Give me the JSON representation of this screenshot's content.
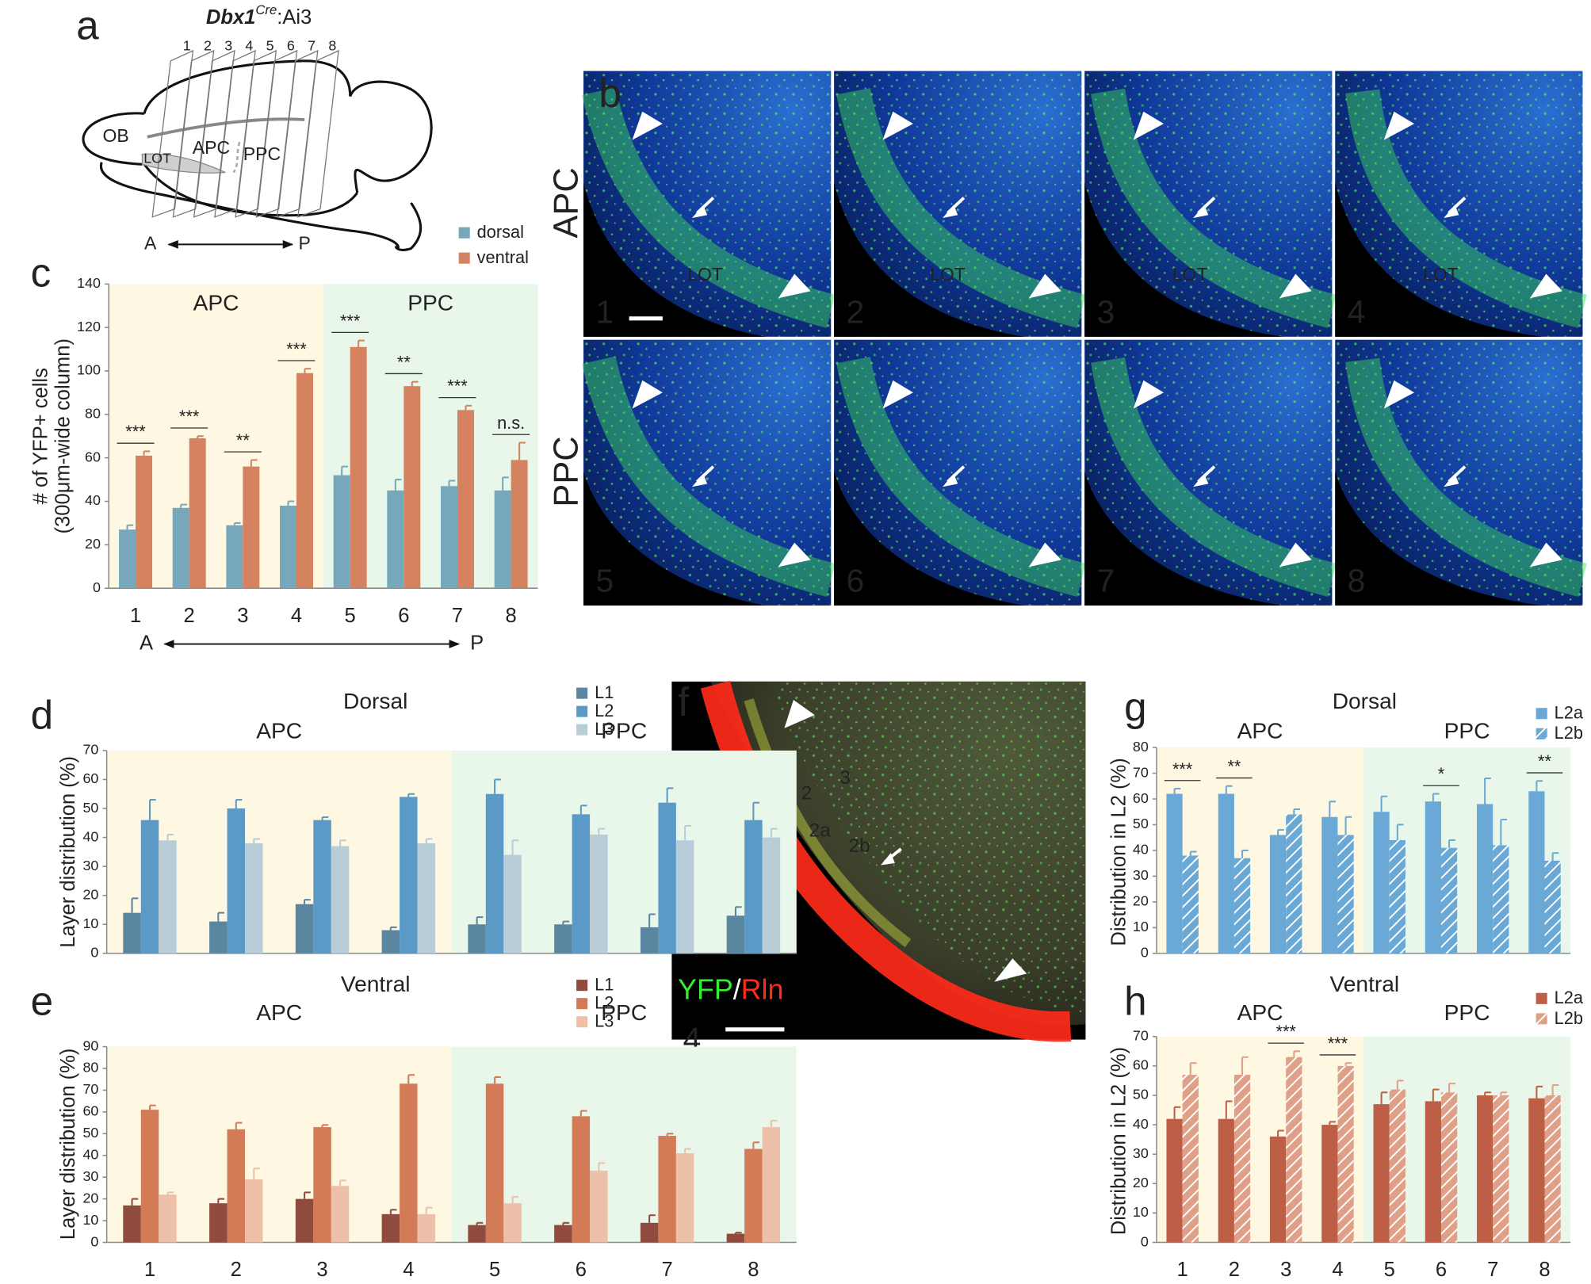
{
  "diagram": {
    "panel_label": "a",
    "title_gene": "Dbx1",
    "title_sup": "Cre",
    "title_rest": ":Ai3",
    "sections": [
      "1",
      "2",
      "3",
      "4",
      "5",
      "6",
      "7",
      "8"
    ],
    "structures": [
      "OB",
      "LOT",
      "APC",
      "PPC"
    ],
    "axis_ends": [
      "A",
      "P"
    ]
  },
  "micrographs": {
    "panel_label": "b",
    "row_labels": [
      "APC",
      "PPC"
    ],
    "sections": [
      "1",
      "2",
      "3",
      "4",
      "5",
      "6",
      "7",
      "8"
    ],
    "tract_labels": [
      "LOT",
      "LOT",
      "LOT",
      "LOT"
    ]
  },
  "image_f": {
    "panel_label": "f",
    "layers": [
      "1",
      "2",
      "3",
      "2a",
      "2b"
    ],
    "stain_green": "YFP",
    "stain_sep": "/",
    "stain_red": "Rln",
    "section": "4"
  },
  "chart_data": [
    {
      "type": "bar",
      "panel_label": "c",
      "ylabel": [
        "# of YFP+ cells",
        "(300μm-wide column)"
      ],
      "categories": [
        "1",
        "2",
        "3",
        "4",
        "5",
        "6",
        "7",
        "8"
      ],
      "x_ends": [
        "A",
        "P"
      ],
      "regions": [
        {
          "label": "APC",
          "start": 0,
          "end": 3,
          "color": "#fef7e2"
        },
        {
          "label": "PPC",
          "start": 4,
          "end": 7,
          "color": "#e8f7e9"
        }
      ],
      "series": [
        {
          "name": "dorsal",
          "color": "#76a7bb",
          "values": [
            27,
            37,
            29,
            38,
            52,
            45,
            47,
            45
          ],
          "errors": [
            2,
            1.5,
            1,
            2,
            4,
            5,
            2.5,
            6
          ]
        },
        {
          "name": "ventral",
          "color": "#d4825f",
          "values": [
            61,
            69,
            56,
            99,
            111,
            93,
            82,
            59
          ],
          "errors": [
            2,
            1,
            3,
            2,
            3,
            2,
            2,
            8
          ]
        }
      ],
      "significance": [
        "***",
        "***",
        "**",
        "***",
        "***",
        "**",
        "***",
        "n.s."
      ],
      "ylim": [
        0,
        140
      ],
      "yticks": [
        0,
        20,
        40,
        60,
        80,
        100,
        120,
        140
      ]
    },
    {
      "type": "bar",
      "panel_label": "d",
      "title": "Dorsal",
      "ylabel": "Layer distribution (%)",
      "categories": [
        null,
        null,
        null,
        null,
        null,
        null,
        null,
        null
      ],
      "regions": [
        {
          "label": "APC",
          "start": 0,
          "end": 3,
          "color": "#fef7e2"
        },
        {
          "label": "PPC",
          "start": 4,
          "end": 7,
          "color": "#e8f7e9"
        }
      ],
      "series": [
        {
          "name": "L1",
          "color": "#5a86a0",
          "values": [
            14,
            11,
            17,
            8,
            10,
            10,
            9,
            13
          ],
          "errors": [
            5,
            3,
            1.5,
            1,
            2.5,
            1,
            4.5,
            3
          ]
        },
        {
          "name": "L2",
          "color": "#5b9ac6",
          "values": [
            46,
            50,
            46,
            54,
            55,
            48,
            52,
            46
          ],
          "errors": [
            7,
            3,
            1,
            1,
            5,
            3,
            5,
            6
          ]
        },
        {
          "name": "L3",
          "color": "#b9cdd8",
          "values": [
            39,
            38,
            37,
            38,
            34,
            41,
            39,
            40
          ],
          "errors": [
            2,
            1.5,
            2,
            1.5,
            5,
            2,
            5,
            3
          ]
        }
      ],
      "ylim": [
        0,
        70
      ],
      "yticks": [
        0,
        10,
        20,
        30,
        40,
        50,
        60,
        70
      ]
    },
    {
      "type": "bar",
      "panel_label": "e",
      "title": "Ventral",
      "ylabel": "Layer distribution (%)",
      "categories": [
        "1",
        "2",
        "3",
        "4",
        "5",
        "6",
        "7",
        "8"
      ],
      "regions": [
        {
          "label": "APC",
          "start": 0,
          "end": 3,
          "color": "#fef7e2"
        },
        {
          "label": "PPC",
          "start": 4,
          "end": 7,
          "color": "#e8f7e9"
        }
      ],
      "series": [
        {
          "name": "L1",
          "color": "#8f4b3d",
          "values": [
            17,
            18,
            20,
            13,
            8,
            8,
            9,
            4
          ],
          "errors": [
            3,
            2,
            3,
            2,
            1,
            1,
            3.5,
            0.5
          ]
        },
        {
          "name": "L2",
          "color": "#d37b57",
          "values": [
            61,
            52,
            53,
            73,
            73,
            58,
            49,
            43
          ],
          "errors": [
            2,
            3,
            1,
            4,
            3,
            2.5,
            1,
            3
          ]
        },
        {
          "name": "L3",
          "color": "#ecc0a9",
          "values": [
            22,
            29,
            26,
            13,
            18,
            33,
            41,
            53
          ],
          "errors": [
            1,
            5,
            2.5,
            3,
            3,
            3.5,
            2,
            3
          ]
        }
      ],
      "ylim": [
        0,
        90
      ],
      "yticks": [
        0,
        10,
        20,
        30,
        40,
        50,
        60,
        70,
        80,
        90
      ]
    },
    {
      "type": "bar",
      "panel_label": "g",
      "title": "Dorsal",
      "ylabel": "Distribution in L2 (%)",
      "categories": [
        null,
        null,
        null,
        null,
        null,
        null,
        null,
        null
      ],
      "regions": [
        {
          "label": "APC",
          "start": 0,
          "end": 3,
          "color": "#fef7e2"
        },
        {
          "label": "PPC",
          "start": 4,
          "end": 7,
          "color": "#e8f7e9"
        }
      ],
      "series": [
        {
          "name": "L2a",
          "color": "#6aa8d6",
          "values": [
            62,
            62,
            46,
            53,
            55,
            59,
            58,
            63
          ],
          "errors": [
            2,
            3,
            2,
            6,
            6,
            3,
            10,
            4
          ]
        },
        {
          "name": "L2b",
          "color": "#6aa8d6",
          "hatch": true,
          "values": [
            38,
            37,
            54,
            46,
            44,
            41,
            42,
            36
          ],
          "errors": [
            1.5,
            3,
            2,
            7,
            6,
            3,
            10,
            3
          ]
        }
      ],
      "significance": [
        "***",
        "**",
        null,
        null,
        null,
        "*",
        null,
        "**"
      ],
      "ylim": [
        0,
        80
      ],
      "yticks": [
        0,
        10,
        20,
        30,
        40,
        50,
        60,
        70,
        80
      ]
    },
    {
      "type": "bar",
      "panel_label": "h",
      "title": "Ventral",
      "ylabel": "Distribution in L2 (%)",
      "categories": [
        "1",
        "2",
        "3",
        "4",
        "5",
        "6",
        "7",
        "8"
      ],
      "regions": [
        {
          "label": "APC",
          "start": 0,
          "end": 3,
          "color": "#fef7e2"
        },
        {
          "label": "PPC",
          "start": 4,
          "end": 7,
          "color": "#e8f7e9"
        }
      ],
      "series": [
        {
          "name": "L2a",
          "color": "#bd5f47",
          "values": [
            42,
            42,
            36,
            40,
            47,
            48,
            50,
            49
          ],
          "errors": [
            4,
            6,
            2,
            1,
            4,
            4,
            1,
            4
          ]
        },
        {
          "name": "L2b",
          "color": "#e0a088",
          "hatch": true,
          "values": [
            57,
            57,
            63,
            60,
            52,
            51,
            50,
            50
          ],
          "errors": [
            4,
            6,
            2,
            1,
            3,
            3,
            1,
            3.5
          ]
        }
      ],
      "significance": [
        null,
        null,
        "***",
        "***",
        null,
        null,
        null,
        null
      ],
      "ylim": [
        0,
        70
      ],
      "yticks": [
        0,
        10,
        20,
        30,
        40,
        50,
        60,
        70
      ]
    }
  ]
}
